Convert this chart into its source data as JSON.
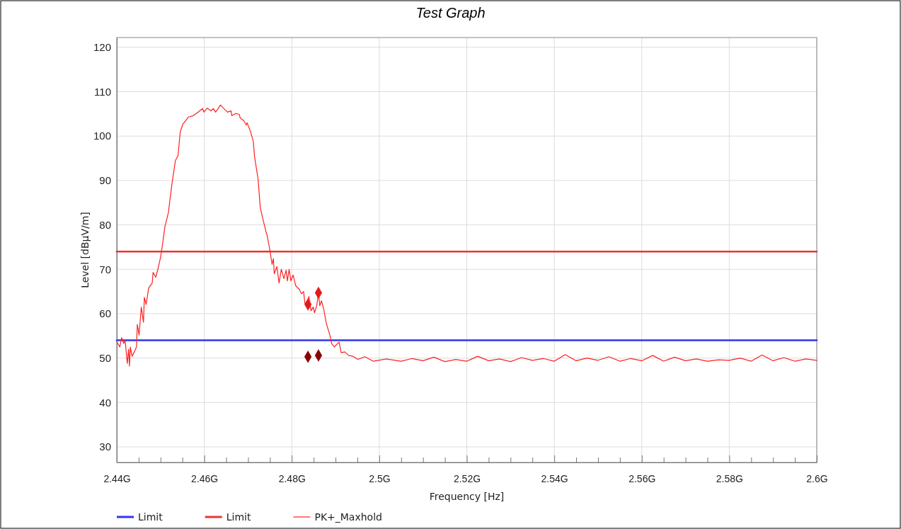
{
  "chart_data": {
    "type": "line",
    "title": "Test Graph",
    "xlabel": "Frequency [Hz]",
    "ylabel": "Level [dBµV/m]",
    "xlim": [
      2.44,
      2.6
    ],
    "xticks": [
      {
        "value": 2.44,
        "label": "2.44G"
      },
      {
        "value": 2.445,
        "label": null
      },
      {
        "value": 2.45,
        "label": null
      },
      {
        "value": 2.455,
        "label": null
      },
      {
        "value": 2.46,
        "label": "2.46G"
      },
      {
        "value": 2.465,
        "label": null
      },
      {
        "value": 2.47,
        "label": null
      },
      {
        "value": 2.475,
        "label": null
      },
      {
        "value": 2.48,
        "label": "2.48G"
      },
      {
        "value": 2.485,
        "label": null
      },
      {
        "value": 2.49,
        "label": null
      },
      {
        "value": 2.495,
        "label": null
      },
      {
        "value": 2.5,
        "label": "2.5G"
      },
      {
        "value": 2.505,
        "label": null
      },
      {
        "value": 2.51,
        "label": null
      },
      {
        "value": 2.515,
        "label": null
      },
      {
        "value": 2.52,
        "label": "2.52G"
      },
      {
        "value": 2.525,
        "label": null
      },
      {
        "value": 2.53,
        "label": null
      },
      {
        "value": 2.535,
        "label": null
      },
      {
        "value": 2.54,
        "label": "2.54G"
      },
      {
        "value": 2.545,
        "label": null
      },
      {
        "value": 2.55,
        "label": null
      },
      {
        "value": 2.555,
        "label": null
      },
      {
        "value": 2.56,
        "label": "2.56G"
      },
      {
        "value": 2.565,
        "label": null
      },
      {
        "value": 2.57,
        "label": null
      },
      {
        "value": 2.575,
        "label": null
      },
      {
        "value": 2.58,
        "label": "2.58G"
      },
      {
        "value": 2.585,
        "label": null
      },
      {
        "value": 2.59,
        "label": null
      },
      {
        "value": 2.595,
        "label": null
      },
      {
        "value": 2.6,
        "label": "2.6G"
      }
    ],
    "ylim": [
      26.5,
      122.2
    ],
    "yticks": [
      30,
      40,
      50,
      60,
      70,
      80,
      90,
      100,
      110,
      120
    ],
    "grid": true,
    "legend": "bottom",
    "series": [
      {
        "name": "Limit",
        "color": "#3333ee",
        "x": [
          2.44,
          2.6
        ],
        "values": [
          54,
          54
        ]
      },
      {
        "name": "Limit",
        "color": "#ee3333",
        "x": [
          2.44,
          2.6
        ],
        "values": [
          74,
          74
        ]
      },
      {
        "name": "PK+_Maxhold",
        "color": "#ff2020",
        "x": [
          2.44,
          2.4407,
          2.4411,
          2.4416,
          2.4419,
          2.4424,
          2.4427,
          2.4429,
          2.4431,
          2.4435,
          2.444,
          2.4445,
          2.4447,
          2.4451,
          2.4456,
          2.4461,
          2.4463,
          2.4467,
          2.4473,
          2.4481,
          2.4483,
          2.4489,
          2.4494,
          2.45,
          2.4505,
          2.451,
          2.4518,
          2.4526,
          2.4534,
          2.454,
          2.4545,
          2.4551,
          2.4564,
          2.4575,
          2.4586,
          2.4596,
          2.4599,
          2.4607,
          2.4615,
          2.4621,
          2.4626,
          2.4637,
          2.4645,
          2.4653,
          2.4661,
          2.4663,
          2.4672,
          2.468,
          2.4682,
          2.469,
          2.4696,
          2.4698,
          2.4706,
          2.4712,
          2.4715,
          2.4723,
          2.4728,
          2.4733,
          2.4741,
          2.4744,
          2.475,
          2.4755,
          2.4758,
          2.476,
          2.4766,
          2.4771,
          2.4776,
          2.4782,
          2.4787,
          2.479,
          2.4794,
          2.4798,
          2.4803,
          2.4809,
          2.4817,
          2.4822,
          2.4827,
          2.483,
          2.4835,
          2.4839,
          2.4844,
          2.4849,
          2.4852,
          2.4857,
          2.4861,
          2.4864,
          2.4868,
          2.4873,
          2.4879,
          2.4887,
          2.4891,
          2.4897,
          2.4908,
          2.4913,
          2.4921,
          2.493,
          2.494,
          2.4951,
          2.4967,
          2.4986,
          2.5016,
          2.505,
          2.5075,
          2.51,
          2.5125,
          2.515,
          2.5175,
          2.52,
          2.5225,
          2.525,
          2.5275,
          2.53,
          2.5325,
          2.535,
          2.5375,
          2.54,
          2.5425,
          2.545,
          2.5475,
          2.55,
          2.5525,
          2.555,
          2.5575,
          2.56,
          2.5625,
          2.565,
          2.5675,
          2.57,
          2.5725,
          2.575,
          2.5775,
          2.58,
          2.5825,
          2.585,
          2.5875,
          2.59,
          2.5925,
          2.595,
          2.5975,
          2.6
        ],
        "values": [
          53.7,
          52.5,
          54.6,
          53.3,
          54.1,
          48.8,
          52,
          48.2,
          52.5,
          50.4,
          51.4,
          52.5,
          57.6,
          55.2,
          61.5,
          58.1,
          63.7,
          62.1,
          65.8,
          66.9,
          69.3,
          68.2,
          70,
          72.7,
          75.9,
          79.6,
          82.8,
          89.2,
          94.5,
          95.6,
          100.9,
          102.7,
          104.3,
          104.6,
          105.4,
          106.2,
          105.4,
          106.3,
          105.7,
          106.2,
          105.4,
          107,
          106.2,
          105.4,
          105.7,
          104.6,
          105.1,
          104.9,
          104.1,
          103.5,
          102.5,
          103,
          100.9,
          98.8,
          95.3,
          90.3,
          83.9,
          81.7,
          78.5,
          77.5,
          74.3,
          71.1,
          72.4,
          69,
          70.6,
          66.9,
          70,
          67.9,
          69.8,
          67.4,
          70,
          67.4,
          68.7,
          66.3,
          65.5,
          64.5,
          65,
          62.3,
          62.1,
          63.9,
          60.7,
          61.5,
          60.2,
          61.8,
          64.7,
          61.8,
          62.9,
          61,
          57.8,
          55.2,
          53.3,
          52.5,
          53.6,
          51.2,
          51.4,
          50.6,
          50.4,
          49.7,
          50.3,
          49.3,
          49.8,
          49.3,
          49.9,
          49.4,
          50.2,
          49.2,
          49.7,
          49.3,
          50.4,
          49.4,
          49.8,
          49.2,
          50.1,
          49.5,
          49.9,
          49.3,
          50.8,
          49.4,
          50,
          49.5,
          50.3,
          49.3,
          49.9,
          49.4,
          50.6,
          49.3,
          50.2,
          49.4,
          49.8,
          49.3,
          49.6,
          49.5,
          50,
          49.3,
          50.7,
          49.4,
          50.1,
          49.3,
          49.8,
          49.5
        ]
      },
      {
        "type": "scatter",
        "marker": "diamond",
        "color": "#e41a1a",
        "x": [
          2.4837,
          2.4861
        ],
        "values": [
          62.1,
          64.7
        ]
      },
      {
        "type": "scatter",
        "marker": "diamond",
        "color": "#8b0000",
        "x": [
          2.4837,
          2.4861
        ],
        "values": [
          50.3,
          50.6
        ]
      }
    ]
  }
}
